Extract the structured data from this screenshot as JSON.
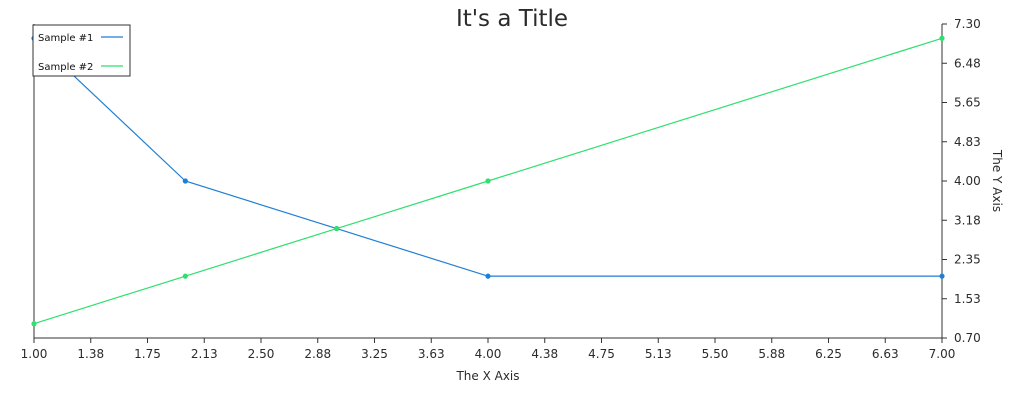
{
  "chart_data": {
    "type": "line",
    "title": "It's a Title",
    "xlabel": "The X Axis",
    "ylabel": "The Y Axis",
    "xlim": [
      1.0,
      7.0
    ],
    "ylim": [
      0.7,
      7.3
    ],
    "x_tick_labels": [
      "1.00",
      "1.38",
      "1.75",
      "2.13",
      "2.50",
      "2.88",
      "3.25",
      "3.63",
      "4.00",
      "4.38",
      "4.75",
      "5.13",
      "5.50",
      "5.88",
      "6.25",
      "6.63",
      "7.00"
    ],
    "y_tick_labels": [
      "0.70",
      "1.53",
      "2.35",
      "3.18",
      "4.00",
      "4.83",
      "5.65",
      "6.48",
      "7.30"
    ],
    "y_axis_side": "right",
    "grid": false,
    "legend_position": "top-left",
    "series": [
      {
        "name": "Sample #1",
        "color": "#1f7fd6",
        "x": [
          1,
          2,
          3,
          4,
          7
        ],
        "y": [
          7,
          4,
          3,
          2,
          2
        ]
      },
      {
        "name": "Sample #2",
        "color": "#2ee06e",
        "x": [
          1,
          2,
          3,
          4,
          7
        ],
        "y": [
          1,
          2,
          3,
          4,
          7
        ]
      }
    ]
  }
}
